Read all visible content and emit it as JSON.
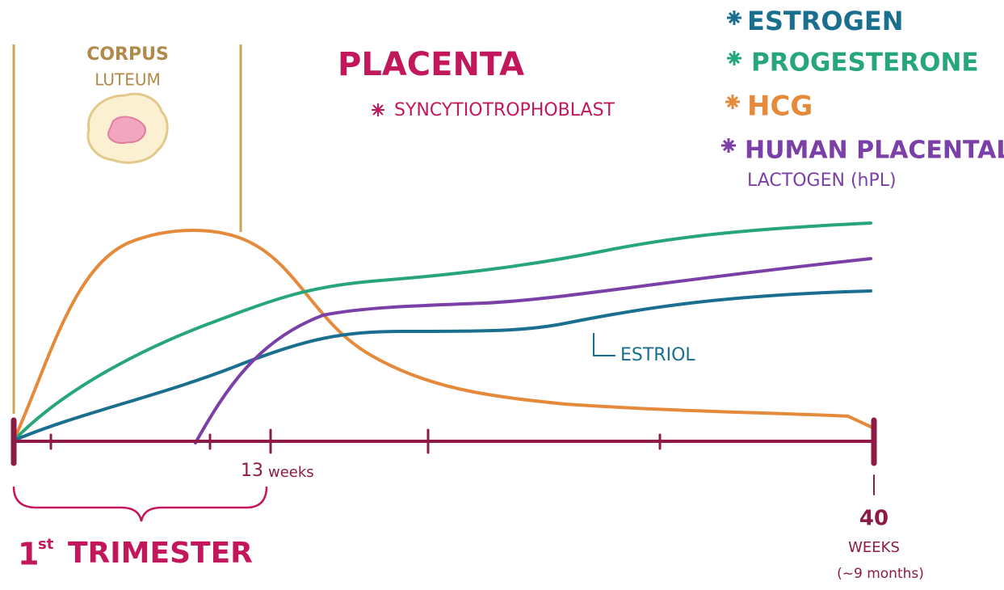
{
  "corpus_luteum": {
    "line1": "CORPUS",
    "line2": "LUTEUM"
  },
  "placenta": {
    "title": "PLACENTA",
    "subtitle": "SYNCYTIOTROPHOBLAST"
  },
  "legend": [
    {
      "label": "ESTROGEN"
    },
    {
      "label": "PROGESTERONE"
    },
    {
      "label": "HCG"
    },
    {
      "label": "HUMAN PLACENTAL",
      "label2": "LACTOGEN (hPL)"
    }
  ],
  "annotations": {
    "estriol": "ESTRIOL"
  },
  "axis": {
    "mid_number": "13",
    "mid_unit": "weeks",
    "end_number": "40",
    "end_unit": "WEEKS",
    "end_note": "(~9 months)"
  },
  "trimester": {
    "ordinal": "1",
    "suffix": "st",
    "label": "TRIMESTER"
  }
}
